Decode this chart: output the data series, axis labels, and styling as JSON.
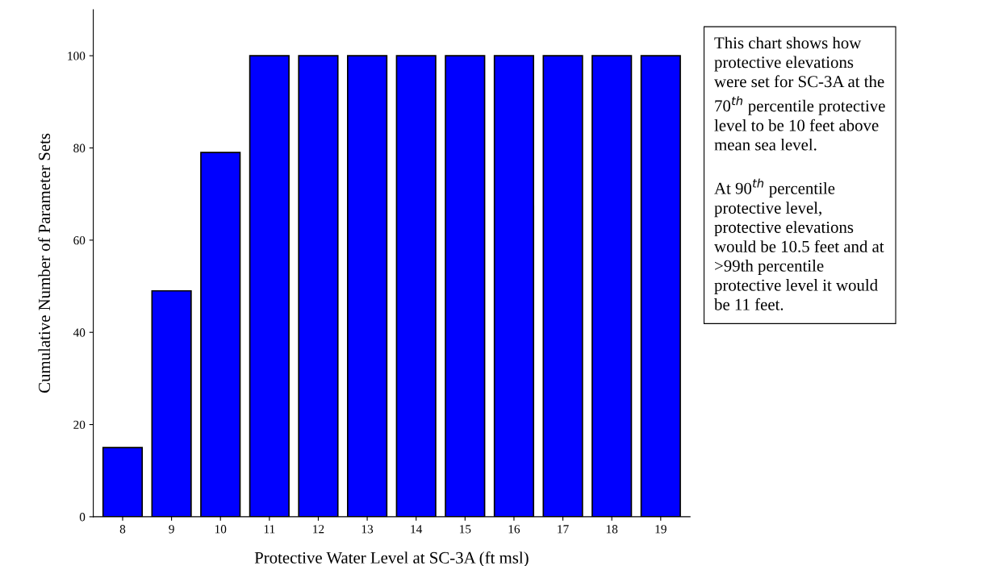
{
  "chart_data": {
    "type": "bar",
    "xlabel": "Protective Water Level at SC-3A (ft msl)",
    "ylabel": "Cumulative Number of Parameter Sets",
    "categories": [
      "8",
      "9",
      "10",
      "11",
      "12",
      "13",
      "14",
      "15",
      "16",
      "17",
      "18",
      "19"
    ],
    "values": [
      15,
      49,
      79,
      100,
      100,
      100,
      100,
      100,
      100,
      100,
      100,
      100
    ],
    "color": "#0000ff",
    "ylim": [
      0,
      110
    ],
    "yticks": [
      0,
      20,
      40,
      60,
      80,
      100
    ],
    "grid": false,
    "legend": false,
    "annotations": [
      "This chart shows how\nprotective elevations\nwere set for SC-3A at the\n70$^{th}$ percentile protective\nlevel to be 10 feet above\nmean sea level.\n\nAt 90$^{th}$ percentile\nprotective level,\nprotective elevations\nwould be 10.5 feet and at\n>99th percentile\nprotective level it would\nbe 11 feet."
    ]
  }
}
